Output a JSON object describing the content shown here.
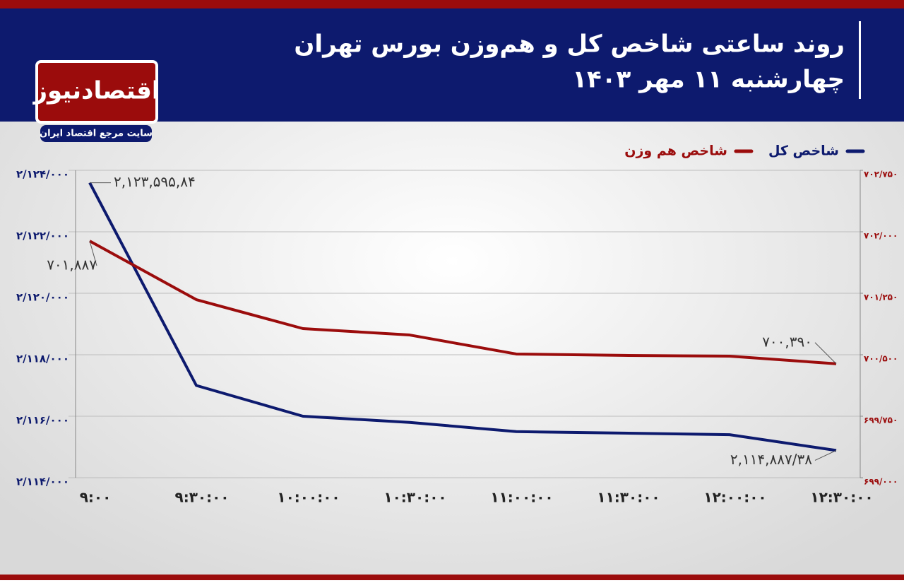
{
  "header": {
    "title": "روند ساعتی شاخص کل و هم‌وزن بورس تهران",
    "subtitle": "چهارشنبه ۱۱ مهر ۱۴۰۳",
    "logo": "اقتصادنیوز",
    "tagline": "سایت مرجع اقتصاد ایران"
  },
  "chart_data": {
    "type": "line",
    "categories": [
      "۹:۰۰",
      "۹:۳۰:۰۰",
      "۱۰:۰۰:۰۰",
      "۱۰:۳۰:۰۰",
      "۱۱:۰۰:۰۰",
      "۱۱:۳۰:۰۰",
      "۱۲:۰۰:۰۰",
      "۱۲:۳۰:۰۰"
    ],
    "series": [
      {
        "name": "شاخص کل",
        "color": "#0d1a6e",
        "axis": "y",
        "values": [
          2123595.84,
          2117000,
          2116000,
          2115800,
          2115500,
          2115450,
          2115400,
          2114887.38
        ],
        "value_labels": [
          "۲,۱۲۳,۵۹۵,۸۴",
          null,
          null,
          null,
          null,
          null,
          null,
          "۲,۱۱۴,۸۸۷/۳۸"
        ]
      },
      {
        "name": "شاخص هم وزن",
        "color": "#9b0c0c",
        "axis": "y2",
        "values": [
          701887,
          701172,
          700819,
          700741,
          700509,
          700492,
          700483,
          700390
        ],
        "value_labels": [
          "۷۰۱,۸۸۷",
          null,
          null,
          null,
          null,
          null,
          null,
          "۷۰۰,۳۹۰"
        ]
      }
    ],
    "ylim": [
      2114000,
      2124000
    ],
    "yticks": [
      {
        "value": 2114000,
        "label": "۲/۱۱۴/۰۰۰"
      },
      {
        "value": 2116000,
        "label": "۲/۱۱۶/۰۰۰"
      },
      {
        "value": 2118000,
        "label": "۲/۱۱۸/۰۰۰"
      },
      {
        "value": 2120000,
        "label": "۲/۱۲۰/۰۰۰"
      },
      {
        "value": 2122000,
        "label": "۲/۱۲۲/۰۰۰"
      },
      {
        "value": 2124000,
        "label": "۲/۱۲۴/۰۰۰"
      }
    ],
    "y2lim": [
      699000,
      702750
    ],
    "y2ticks": [
      {
        "value": 699000,
        "label": "۶۹۹/۰۰۰"
      },
      {
        "value": 699750,
        "label": "۶۹۹/۷۵۰"
      },
      {
        "value": 700500,
        "label": "۷۰۰/۵۰۰"
      },
      {
        "value": 701250,
        "label": "۷۰۱/۲۵۰"
      },
      {
        "value": 702000,
        "label": "۷۰۲/۰۰۰"
      },
      {
        "value": 702750,
        "label": "۷۰۲/۷۵۰"
      }
    ],
    "grid": true,
    "legend": "top-right"
  }
}
